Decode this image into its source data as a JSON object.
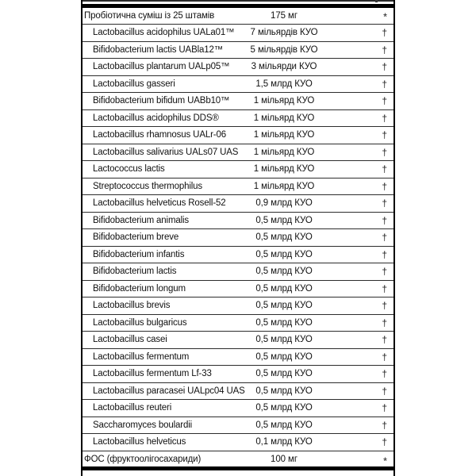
{
  "label": {
    "partial_row_symbol": "†",
    "rows": [
      {
        "name": "Пробіотична суміш із 25 штамів",
        "amount": "175 мг",
        "symbol": "*",
        "indented": false
      },
      {
        "name": "Lactobacillus acidophilus UALa01™",
        "amount": "7 мільярдів КУО",
        "symbol": "†",
        "indented": true
      },
      {
        "name": "Bifidobacterium lactis UABla12™",
        "amount": "5 мільярдів КУО",
        "symbol": "†",
        "indented": true
      },
      {
        "name": "Lactobacillus plantarum UALp05™",
        "amount": "3 мільярди КУО",
        "symbol": "†",
        "indented": true
      },
      {
        "name": "Lactobacillus gasseri",
        "amount": "1,5 млрд КУО",
        "symbol": "†",
        "indented": true
      },
      {
        "name": "Bifidobacterium bifidum UABb10™",
        "amount": "1 мільярд КУО",
        "symbol": "†",
        "indented": true
      },
      {
        "name": "Lactobacillus acidophilus DDS®",
        "amount": "1 мільярд КУО",
        "symbol": "†",
        "indented": true
      },
      {
        "name": "Lactobacillus rhamnosus UALr-06",
        "amount": "1 мільярд КУО",
        "symbol": "†",
        "indented": true
      },
      {
        "name": "Lactobacillus salivarius UALs07 UAS",
        "amount": "1 мільярд КУО",
        "symbol": "†",
        "indented": true
      },
      {
        "name": "Lactococcus lactis",
        "amount": "1 мільярд КУО",
        "symbol": "†",
        "indented": true
      },
      {
        "name": "Streptococcus thermophilus",
        "amount": "1 мільярд КУО",
        "symbol": "†",
        "indented": true
      },
      {
        "name": "Lactobacillus helveticus Rosell-52",
        "amount": "0,9 млрд КУО",
        "symbol": "†",
        "indented": true
      },
      {
        "name": "Bifidobacterium animalis",
        "amount": "0,5 млрд КУО",
        "symbol": "†",
        "indented": true
      },
      {
        "name": "Bifidobacterium breve",
        "amount": "0,5 млрд КУО",
        "symbol": "†",
        "indented": true
      },
      {
        "name": "Bifidobacterium infantis",
        "amount": "0,5 млрд КУО",
        "symbol": "†",
        "indented": true
      },
      {
        "name": "Bifidobacterium lactis",
        "amount": "0,5 млрд КУО",
        "symbol": "†",
        "indented": true
      },
      {
        "name": "Bifidobacterium longum",
        "amount": "0,5 млрд КУО",
        "symbol": "†",
        "indented": true
      },
      {
        "name": "Lactobacillus brevis",
        "amount": "0,5 млрд КУО",
        "symbol": "†",
        "indented": true
      },
      {
        "name": "Lactobacillus bulgaricus",
        "amount": "0,5 млрд КУО",
        "symbol": "†",
        "indented": true
      },
      {
        "name": "Lactobacillus casei",
        "amount": "0,5 млрд КУО",
        "symbol": "†",
        "indented": true
      },
      {
        "name": "Lactobacillus fermentum",
        "amount": "0,5 млрд КУО",
        "symbol": "†",
        "indented": true
      },
      {
        "name": "Lactobacillus fermentum Lf-33",
        "amount": "0,5 млрд КУО",
        "symbol": "†",
        "indented": true
      },
      {
        "name": "Lactobacillus paracasei UALpc04 UAS",
        "amount": "0,5 млрд КУО",
        "symbol": "†",
        "indented": true
      },
      {
        "name": "Lactobacillus reuteri",
        "amount": "0,5 млрд КУО",
        "symbol": "†",
        "indented": true
      },
      {
        "name": "Saccharomyces boulardii",
        "amount": "0,5 млрд КУО",
        "symbol": "†",
        "indented": true
      },
      {
        "name": "Lactobacillus helveticus",
        "amount": "0,1 млрд КУО",
        "symbol": "†",
        "indented": true
      },
      {
        "name": "ФОС (фруктоолігосахариди)",
        "amount": "100 мг",
        "symbol": "*",
        "indented": false
      }
    ]
  },
  "colors": {
    "background": "#ffffff",
    "border": "#000000",
    "separator": "#2d2d2d",
    "text": "#111111"
  }
}
